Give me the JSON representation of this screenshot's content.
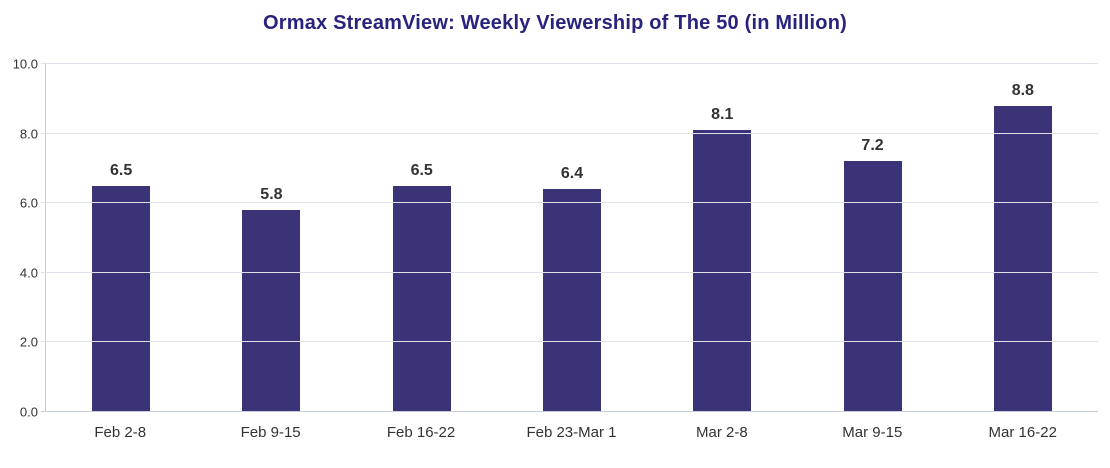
{
  "colors": {
    "title": "#28237d",
    "bar": "#3a3377",
    "value_label": "#333333",
    "axis_label": "#333333",
    "gridline": "#dde1e9",
    "axis_line": "#c7cedb"
  },
  "chart_data": {
    "type": "bar",
    "title": "Ormax StreamView: Weekly Viewership of The 50 (in Million)",
    "categories": [
      "Feb 2-8",
      "Feb 9-15",
      "Feb 16-22",
      "Feb 23-Mar 1",
      "Mar 2-8",
      "Mar 9-15",
      "Mar 16-22"
    ],
    "values": [
      6.5,
      5.8,
      6.5,
      6.4,
      8.1,
      7.2,
      8.8
    ],
    "value_labels": [
      "6.5",
      "5.8",
      "6.5",
      "6.4",
      "8.1",
      "7.2",
      "8.8"
    ],
    "xlabel": "",
    "ylabel": "",
    "ylim": [
      0,
      10
    ],
    "yticks": [
      0.0,
      2.0,
      4.0,
      6.0,
      8.0,
      10.0
    ],
    "ytick_labels": [
      "0.0",
      "2.0",
      "4.0",
      "6.0",
      "8.0",
      "10.0"
    ],
    "grid": true,
    "legend": false
  }
}
